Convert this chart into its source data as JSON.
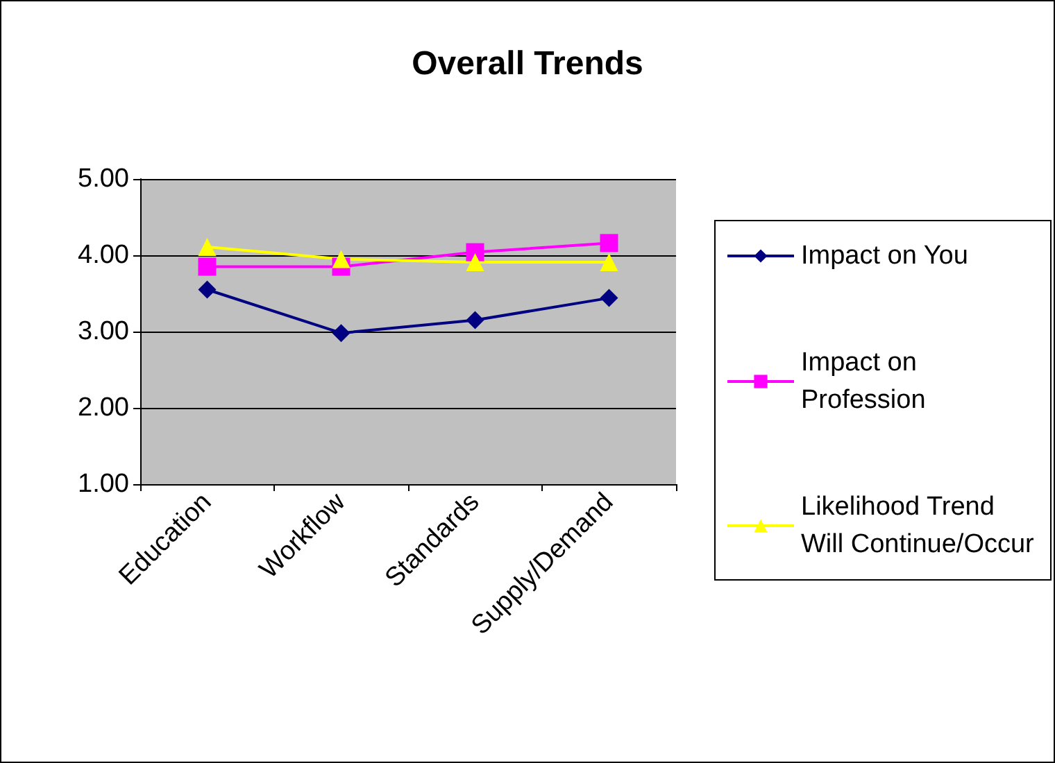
{
  "chart_data": {
    "type": "line",
    "title": "Overall Trends",
    "categories": [
      "Education",
      "Workflow",
      "Standards",
      "Supply/Demand"
    ],
    "series": [
      {
        "name": "Impact on You",
        "color": "#000080",
        "marker": "diamond",
        "values": [
          3.55,
          2.98,
          3.15,
          3.44
        ]
      },
      {
        "name": "Impact on Profession",
        "color": "#ff00ff",
        "marker": "square",
        "values": [
          3.85,
          3.85,
          4.04,
          4.16
        ]
      },
      {
        "name": "Likelihood Trend Will Continue/Occur",
        "color": "#ffff00",
        "marker": "triangle",
        "values": [
          4.11,
          3.95,
          3.91,
          3.91
        ]
      }
    ],
    "ylim": [
      1,
      5
    ],
    "yticks": [
      {
        "value": 1,
        "label": "1.00"
      },
      {
        "value": 2,
        "label": "2.00"
      },
      {
        "value": 3,
        "label": "3.00"
      },
      {
        "value": 4,
        "label": "4.00"
      },
      {
        "value": 5,
        "label": "5.00"
      }
    ],
    "grid": "y",
    "legend": "right",
    "line_style": "solid"
  }
}
